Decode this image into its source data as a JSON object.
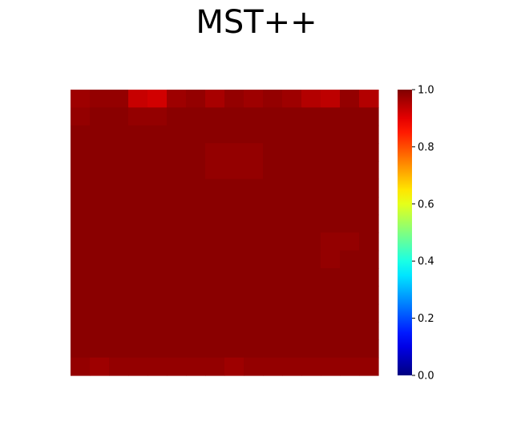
{
  "chart_data": {
    "type": "heatmap",
    "title": "MST++",
    "colormap": "jet",
    "axes_visible": false,
    "grid": false,
    "value_range": [
      0.0,
      1.0
    ],
    "grid_shape": [
      16,
      16
    ],
    "values": [
      [
        0.97,
        0.98,
        0.98,
        0.93,
        0.92,
        0.97,
        0.98,
        0.96,
        0.98,
        0.97,
        0.98,
        0.97,
        0.95,
        0.94,
        0.98,
        0.95
      ],
      [
        0.98,
        0.99,
        0.99,
        0.98,
        0.98,
        0.99,
        0.99,
        0.99,
        0.99,
        0.99,
        0.99,
        0.99,
        0.99,
        0.99,
        0.99,
        0.99
      ],
      [
        0.99,
        0.99,
        0.99,
        0.99,
        0.99,
        0.99,
        0.99,
        0.99,
        0.99,
        0.99,
        0.99,
        0.99,
        0.99,
        0.99,
        0.99,
        0.99
      ],
      [
        0.99,
        0.99,
        0.99,
        0.99,
        0.99,
        0.99,
        0.99,
        0.98,
        0.98,
        0.98,
        0.99,
        0.99,
        0.99,
        0.99,
        0.99,
        0.99
      ],
      [
        0.99,
        0.99,
        0.99,
        0.99,
        0.99,
        0.99,
        0.99,
        0.98,
        0.98,
        0.98,
        0.99,
        0.99,
        0.99,
        0.99,
        0.99,
        0.99
      ],
      [
        0.99,
        0.99,
        0.99,
        0.99,
        0.99,
        0.99,
        0.99,
        0.99,
        0.99,
        0.99,
        0.99,
        0.99,
        0.99,
        0.99,
        0.99,
        0.99
      ],
      [
        0.99,
        0.99,
        0.99,
        0.99,
        0.99,
        0.99,
        0.99,
        0.99,
        0.99,
        0.99,
        0.99,
        0.99,
        0.99,
        0.99,
        0.99,
        0.99
      ],
      [
        0.99,
        0.99,
        0.99,
        0.99,
        0.99,
        0.99,
        0.99,
        0.99,
        0.99,
        0.99,
        0.99,
        0.99,
        0.99,
        0.99,
        0.99,
        0.99
      ],
      [
        0.99,
        0.99,
        0.99,
        0.99,
        0.99,
        0.99,
        0.99,
        0.99,
        0.99,
        0.99,
        0.99,
        0.99,
        0.99,
        0.98,
        0.98,
        0.99
      ],
      [
        0.99,
        0.99,
        0.99,
        0.99,
        0.99,
        0.99,
        0.99,
        0.99,
        0.99,
        0.99,
        0.99,
        0.99,
        0.99,
        0.98,
        0.99,
        0.99
      ],
      [
        0.99,
        0.99,
        0.99,
        0.99,
        0.99,
        0.99,
        0.99,
        0.99,
        0.99,
        0.99,
        0.99,
        0.99,
        0.99,
        0.99,
        0.99,
        0.99
      ],
      [
        0.99,
        0.99,
        0.99,
        0.99,
        0.99,
        0.99,
        0.99,
        0.99,
        0.99,
        0.99,
        0.99,
        0.99,
        0.99,
        0.99,
        0.99,
        0.99
      ],
      [
        0.99,
        0.99,
        0.99,
        0.99,
        0.99,
        0.99,
        0.99,
        0.99,
        0.99,
        0.99,
        0.99,
        0.99,
        0.99,
        0.99,
        0.99,
        0.99
      ],
      [
        0.99,
        0.99,
        0.99,
        0.99,
        0.99,
        0.99,
        0.99,
        0.99,
        0.99,
        0.99,
        0.99,
        0.99,
        0.99,
        0.99,
        0.99,
        0.99
      ],
      [
        0.99,
        0.99,
        0.99,
        0.99,
        0.99,
        0.99,
        0.99,
        0.99,
        0.99,
        0.99,
        0.99,
        0.99,
        0.99,
        0.99,
        0.99,
        0.99
      ],
      [
        0.98,
        0.97,
        0.98,
        0.98,
        0.98,
        0.98,
        0.98,
        0.98,
        0.97,
        0.98,
        0.98,
        0.98,
        0.98,
        0.98,
        0.98,
        0.98
      ]
    ],
    "colorbar": {
      "range": [
        0.0,
        1.0
      ],
      "ticks": [
        0.0,
        0.2,
        0.4,
        0.6,
        0.8,
        1.0
      ],
      "tick_labels": [
        "0.0",
        "0.2",
        "0.4",
        "0.6",
        "0.8",
        "1.0"
      ]
    }
  }
}
